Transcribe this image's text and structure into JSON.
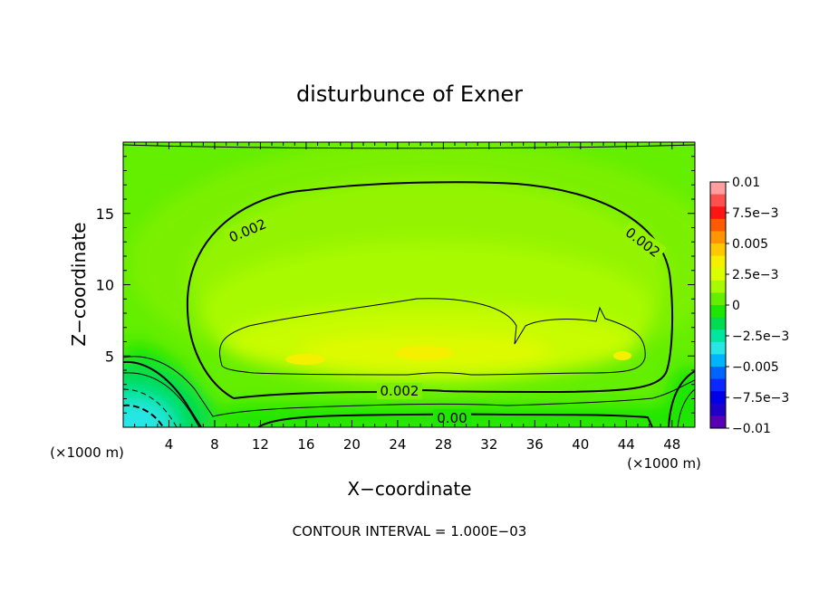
{
  "chart_data": {
    "type": "heatmap",
    "title": "disturbunce of Exner",
    "xlabel": "X−coordinate",
    "ylabel": "Z−coordinate",
    "x_unit": "(×1000 m)",
    "z_unit": "(×1000 m)",
    "xlim": [
      0,
      50
    ],
    "ylim": [
      0,
      20
    ],
    "x_ticks": [
      4,
      8,
      12,
      16,
      20,
      24,
      28,
      32,
      36,
      40,
      44,
      48
    ],
    "y_ticks": [
      5,
      10,
      15
    ],
    "colorbar": {
      "min": -0.01,
      "max": 0.01,
      "tick_values": [
        0.01,
        0.0075,
        0.005,
        0.0025,
        0,
        -0.0025,
        -0.005,
        -0.0075,
        -0.01
      ],
      "tick_labels": [
        "0.01",
        "7.5e−3",
        "0.005",
        "2.5e−3",
        "0",
        "−2.5e−3",
        "−0.005",
        "−7.5e−3",
        "−0.01"
      ],
      "colors": [
        "#ff9e9e",
        "#ff5050",
        "#ff1414",
        "#ff5a00",
        "#ff9600",
        "#ffc800",
        "#f5f000",
        "#dcff00",
        "#a8fa00",
        "#64ee00",
        "#1ee600",
        "#00dc50",
        "#00e6a0",
        "#28e6e6",
        "#00b4ff",
        "#0064ff",
        "#0a28ff",
        "#0000e6",
        "#1e00c8",
        "#5a00b4"
      ]
    },
    "contour_labels": [
      {
        "text": "0.002"
      },
      {
        "text": "0.002"
      },
      {
        "text": "0.002"
      },
      {
        "text": "0.00"
      }
    ],
    "footnote": "CONTOUR INTERVAL = 1.000E−03"
  }
}
